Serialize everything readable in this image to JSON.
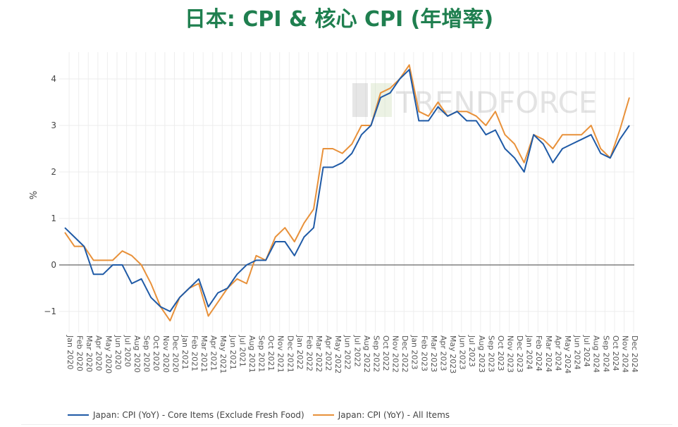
{
  "title": "日本: CPI & 核心 CPI (年增率)",
  "watermark": "TRENDFORCE",
  "legend": [
    {
      "label": "Japan: CPI (YoY) - Core Items (Exclude Fresh Food)",
      "color": "#1f5aa6"
    },
    {
      "label": "Japan: CPI (YoY) - All Items",
      "color": "#e8913a"
    }
  ],
  "chart_data": {
    "type": "line",
    "title": "日本: CPI & 核心 CPI (年增率)",
    "xlabel": "",
    "ylabel": "%",
    "ylim": [
      -1.3,
      4.6
    ],
    "yticks": [
      -1,
      0,
      1,
      2,
      3,
      4
    ],
    "grid": true,
    "legend_position": "bottom",
    "categories": [
      "Jan 2020",
      "Feb 2020",
      "Mar 2020",
      "Apr 2020",
      "May 2020",
      "Jun 2020",
      "Jul 2020",
      "Aug 2020",
      "Sep 2020",
      "Oct 2020",
      "Nov 2020",
      "Dec 2020",
      "Jan 2021",
      "Feb 2021",
      "Mar 2021",
      "Apr 2021",
      "May 2021",
      "Jun 2021",
      "Jul 2021",
      "Aug 2021",
      "Sep 2021",
      "Oct 2021",
      "Nov 2021",
      "Dec 2021",
      "Jan 2022",
      "Feb 2022",
      "Mar 2022",
      "Apr 2022",
      "May 2022",
      "Jun 2022",
      "Jul 2022",
      "Aug 2022",
      "Sep 2022",
      "Oct 2022",
      "Nov 2022",
      "Dec 2022",
      "Jan 2023",
      "Feb 2023",
      "Mar 2023",
      "Apr 2023",
      "May 2023",
      "Jun 2023",
      "Jul 2023",
      "Aug 2023",
      "Sep 2023",
      "Oct 2023",
      "Nov 2023",
      "Dec 2023",
      "Jan 2024",
      "Feb 2024",
      "Mar 2024",
      "Apr 2024",
      "May 2024",
      "Jun 2024",
      "Jul 2024",
      "Aug 2024",
      "Sep 2024",
      "Oct 2024",
      "Nov 2024",
      "Dec 2024"
    ],
    "series": [
      {
        "name": "Japan: CPI (YoY) - Core Items (Exclude Fresh Food)",
        "color": "#1f5aa6",
        "values": [
          0.8,
          0.6,
          0.4,
          -0.2,
          -0.2,
          0.0,
          0.0,
          -0.4,
          -0.3,
          -0.7,
          -0.9,
          -1.0,
          -0.7,
          -0.5,
          -0.3,
          -0.9,
          -0.6,
          -0.5,
          -0.2,
          0.0,
          0.1,
          0.1,
          0.5,
          0.5,
          0.2,
          0.6,
          0.8,
          2.1,
          2.1,
          2.2,
          2.4,
          2.8,
          3.0,
          3.6,
          3.7,
          4.0,
          4.2,
          3.1,
          3.1,
          3.4,
          3.2,
          3.3,
          3.1,
          3.1,
          2.8,
          2.9,
          2.5,
          2.3,
          2.0,
          2.8,
          2.6,
          2.2,
          2.5,
          2.6,
          2.7,
          2.8,
          2.4,
          2.3,
          2.7,
          3.0
        ]
      },
      {
        "name": "Japan: CPI (YoY) - All Items",
        "color": "#e8913a",
        "values": [
          0.7,
          0.4,
          0.4,
          0.1,
          0.1,
          0.1,
          0.3,
          0.2,
          0.0,
          -0.4,
          -0.9,
          -1.2,
          -0.7,
          -0.5,
          -0.4,
          -1.1,
          -0.8,
          -0.5,
          -0.3,
          -0.4,
          0.2,
          0.1,
          0.6,
          0.8,
          0.5,
          0.9,
          1.2,
          2.5,
          2.5,
          2.4,
          2.6,
          3.0,
          3.0,
          3.7,
          3.8,
          4.0,
          4.3,
          3.3,
          3.2,
          3.5,
          3.2,
          3.3,
          3.3,
          3.2,
          3.0,
          3.3,
          2.8,
          2.6,
          2.2,
          2.8,
          2.7,
          2.5,
          2.8,
          2.8,
          2.8,
          3.0,
          2.5,
          2.3,
          2.9,
          3.6
        ]
      }
    ]
  }
}
